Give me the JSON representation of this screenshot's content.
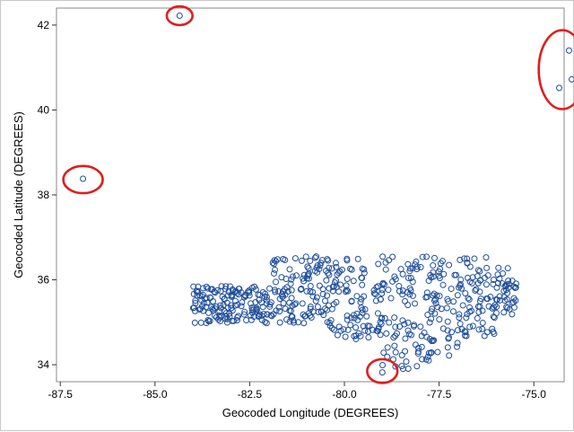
{
  "chart_data": {
    "type": "scatter",
    "title": "",
    "xlabel": "Geocoded Longitude (DEGREES)",
    "ylabel": "Geocoded Latitude (DEGREES)",
    "xlim": [
      -87.6,
      -74.2
    ],
    "ylim": [
      33.6,
      42.4
    ],
    "xticks": [
      -87.5,
      -85.0,
      -82.5,
      -80.0,
      -77.5,
      -75.0
    ],
    "xtick_labels": [
      "-87.5",
      "-85.0",
      "-82.5",
      "-80.0",
      "-77.5",
      "-75.0"
    ],
    "yticks": [
      34,
      36,
      38,
      40,
      42
    ],
    "ytick_labels": [
      "34",
      "36",
      "38",
      "40",
      "42"
    ],
    "grid": false,
    "legend": "none",
    "marker_color": "#1f4e9c",
    "highlight_color": "#e01e1e",
    "outliers": [
      {
        "x": -84.35,
        "y": 42.22
      },
      {
        "x": -86.9,
        "y": 38.38
      },
      {
        "x": -79.0,
        "y": 33.82
      },
      {
        "x": -74.33,
        "y": 40.52
      },
      {
        "x": -74.0,
        "y": 40.72
      },
      {
        "x": -74.07,
        "y": 41.4
      }
    ],
    "highlights": [
      {
        "cx": -84.35,
        "cy": 42.22,
        "rx": 0.34,
        "ry": 0.22
      },
      {
        "cx": -86.9,
        "cy": 38.36,
        "rx": 0.52,
        "ry": 0.32
      },
      {
        "cx": -79.0,
        "cy": 33.85,
        "rx": 0.4,
        "ry": 0.28
      },
      {
        "cx": -74.25,
        "cy": 40.95,
        "rx": 0.62,
        "ry": 0.93
      }
    ],
    "main_cluster": {
      "count": 640,
      "seed": 7,
      "west_end": {
        "x": -83.6,
        "y": 35.05
      },
      "bands": [
        {
          "x0": -84.0,
          "x1": -82.0,
          "y0": 34.98,
          "y1": 35.85
        },
        {
          "x0": -82.0,
          "x1": -80.5,
          "y0": 34.95,
          "y1": 36.55
        },
        {
          "x0": -80.5,
          "x1": -79.0,
          "y0": 34.6,
          "y1": 36.55
        },
        {
          "x0": -79.0,
          "x1": -78.0,
          "y0": 33.9,
          "y1": 36.55
        },
        {
          "x0": -78.0,
          "x1": -77.0,
          "y0": 34.1,
          "y1": 36.55
        },
        {
          "x0": -77.0,
          "x1": -76.0,
          "y0": 34.65,
          "y1": 36.55
        },
        {
          "x0": -76.0,
          "x1": -75.45,
          "y0": 35.15,
          "y1": 36.3
        }
      ]
    }
  }
}
